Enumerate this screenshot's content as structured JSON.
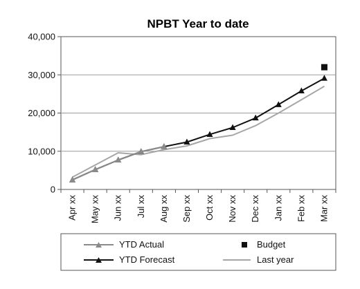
{
  "chart_data": {
    "type": "line",
    "title": "NPBT Year to date",
    "xlabel": "",
    "ylabel": "",
    "categories": [
      "Apr xx",
      "May xx",
      "Jun xx",
      "Jul xx",
      "Aug xx",
      "Sep xx",
      "Oct xx",
      "Nov xx",
      "Dec xx",
      "Jan xx",
      "Feb xx",
      "Mar xx"
    ],
    "ylim": [
      0,
      40000
    ],
    "yticks": [
      0,
      10000,
      20000,
      30000,
      40000
    ],
    "ytick_labels": [
      "0",
      "10,000",
      "20,000",
      "30,000",
      "40,000"
    ],
    "grid": "horizontal",
    "legend_position": "bottom",
    "series": [
      {
        "name": "YTD Actual",
        "marker": "triangle",
        "color": "#8a8a8a",
        "values": [
          2500,
          5200,
          7700,
          9900,
          11200,
          null,
          null,
          null,
          null,
          null,
          null,
          null
        ]
      },
      {
        "name": "YTD Forecast",
        "marker": "triangle",
        "color": "#111111",
        "values": [
          2500,
          5200,
          7700,
          9900,
          11200,
          12400,
          14400,
          16200,
          18700,
          22200,
          25800,
          29100
        ]
      },
      {
        "name": "Last year",
        "marker": "none",
        "color": "#a6a6a6",
        "values": [
          3200,
          6400,
          9600,
          9100,
          10400,
          11400,
          13300,
          14200,
          16700,
          20000,
          23500,
          27000
        ]
      },
      {
        "name": "Budget",
        "marker": "square",
        "color": "#111111",
        "values": [
          null,
          null,
          null,
          null,
          null,
          null,
          null,
          null,
          null,
          null,
          null,
          32000
        ]
      }
    ]
  }
}
